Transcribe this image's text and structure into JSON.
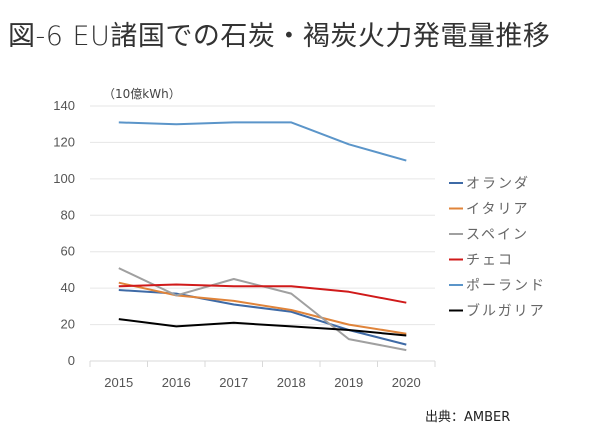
{
  "title": "図-6 EU諸国での石炭・褐炭火力発電量推移",
  "source": "出典：AMBER",
  "chart_data": {
    "type": "line",
    "title": "図-6 EU諸国での石炭・褐炭火力発電量推移",
    "unit_label": "（10億kWh）",
    "xlabel": "",
    "ylabel": "10億kWh",
    "x": [
      "2015",
      "2016",
      "2017",
      "2018",
      "2019",
      "2020"
    ],
    "ylim": [
      0,
      140
    ],
    "yticks": [
      0,
      20,
      40,
      60,
      80,
      100,
      120,
      140
    ],
    "grid": true,
    "legend_position": "right",
    "series": [
      {
        "name": "オランダ",
        "color": "#3e6aa6",
        "values": [
          39,
          37,
          31,
          27,
          17,
          9
        ]
      },
      {
        "name": "イタリア",
        "color": "#e0843a",
        "values": [
          43,
          36,
          33,
          28,
          20,
          15
        ]
      },
      {
        "name": "スペイン",
        "color": "#a0a0a0",
        "values": [
          51,
          36,
          45,
          37,
          12,
          6
        ]
      },
      {
        "name": "チェコ",
        "color": "#d01a1a",
        "values": [
          41,
          42,
          41,
          41,
          38,
          32
        ]
      },
      {
        "name": "ポーランド",
        "color": "#5b95c9",
        "values": [
          131,
          130,
          131,
          131,
          119,
          110
        ]
      },
      {
        "name": "ブルガリア",
        "color": "#000000",
        "values": [
          23,
          19,
          21,
          19,
          17,
          14
        ]
      }
    ]
  }
}
